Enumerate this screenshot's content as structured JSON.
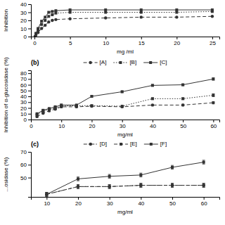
{
  "chart_data": [
    {
      "type": "line",
      "x_label": "mg /ml",
      "y_label": "Inhibition",
      "x": [
        0.1,
        0.2,
        0.5,
        1,
        1.5,
        2,
        2.5,
        3,
        5,
        10,
        15,
        20,
        25
      ],
      "series": [
        {
          "values": [
            0,
            2,
            5,
            10,
            14,
            18,
            20,
            21,
            22,
            23,
            24,
            24,
            25
          ],
          "line_style": "dashed",
          "marker": "circle"
        },
        {
          "values": [
            0,
            3,
            8,
            15,
            20,
            25,
            27,
            29,
            30,
            30,
            30,
            30,
            31
          ],
          "line_style": "dotted",
          "marker": "square"
        },
        {
          "values": [
            0,
            4,
            10,
            19,
            24,
            30,
            31,
            32,
            33,
            33,
            33,
            33,
            33
          ],
          "line_style": "solid",
          "marker": "square"
        }
      ],
      "color": "#333333",
      "xlim": [
        -0.5,
        26
      ],
      "ylim": [
        0,
        40
      ],
      "xticks": [
        0,
        5,
        10,
        15,
        20,
        25
      ],
      "yticks": [
        0,
        10,
        20,
        30,
        40
      ],
      "grid": false
    },
    {
      "type": "line",
      "title": "(b)",
      "x_label": "mg/ml",
      "y_label": "Inhibition of α-glucosidase (%)",
      "x": [
        2,
        4,
        6,
        8,
        10,
        15,
        20,
        30,
        40,
        50,
        60
      ],
      "series": [
        {
          "name": "[A]",
          "values": [
            5,
            11,
            15,
            18,
            22,
            22,
            23,
            22,
            25,
            25,
            29
          ],
          "errors": [
            1,
            1,
            1,
            1,
            1.5,
            1,
            1,
            1,
            1,
            1.5,
            2
          ],
          "line_style": "dashed",
          "marker": "circle"
        },
        {
          "name": "[B]",
          "values": [
            8,
            15,
            17,
            20,
            23,
            24,
            24,
            23,
            36,
            36,
            42
          ],
          "errors": [
            1,
            1,
            1,
            1,
            1,
            1,
            1,
            1,
            1.5,
            1.5,
            2.5
          ],
          "line_style": "dotted",
          "marker": "square"
        },
        {
          "name": "[C]",
          "values": [
            10,
            16,
            19,
            22,
            25,
            25,
            40,
            48,
            59,
            60,
            70
          ],
          "errors": [
            1,
            1,
            1,
            1,
            1.5,
            1,
            1.5,
            1.5,
            1.5,
            1.5,
            2
          ],
          "line_style": "solid",
          "marker": "square"
        }
      ],
      "color": "#333333",
      "xlim": [
        0,
        62
      ],
      "ylim": [
        0,
        85
      ],
      "xticks": [
        0,
        10,
        20,
        30,
        40,
        50,
        60
      ],
      "yticks": [
        0,
        10,
        20,
        30,
        40,
        50,
        60,
        70,
        80
      ],
      "grid": false,
      "legend": "top"
    },
    {
      "type": "line",
      "title": "(c)",
      "x_label": "mg/ml",
      "y_label": "...osidase (%)",
      "x": [
        10,
        20,
        30,
        40,
        50,
        60
      ],
      "series": [
        {
          "name": "[D]",
          "values": [
            37,
            43,
            43,
            44,
            44,
            44
          ],
          "errors": [
            1.5,
            1.5,
            1.5,
            1.5,
            1.5,
            1.5
          ],
          "line_style": "dashdot",
          "marker": "circle"
        },
        {
          "name": "[E]",
          "values": [
            37,
            43,
            43,
            44,
            44,
            44
          ],
          "errors": [
            1.5,
            1.5,
            1.5,
            1.5,
            1.5,
            1.5
          ],
          "line_style": "dashed",
          "marker": "square"
        },
        {
          "name": "[F]",
          "values": [
            37,
            49,
            51,
            52,
            58,
            62
          ],
          "errors": [
            1.5,
            1.5,
            1.5,
            1.5,
            1.5,
            1.5
          ],
          "line_style": "solid",
          "marker": "square"
        }
      ],
      "color": "#333333",
      "xlim": [
        5,
        65
      ],
      "ylim": [
        35,
        70
      ],
      "xticks": [
        10,
        20,
        30,
        40,
        50,
        60
      ],
      "yticks": [
        50,
        60,
        70
      ],
      "grid": false,
      "legend": "top"
    }
  ]
}
